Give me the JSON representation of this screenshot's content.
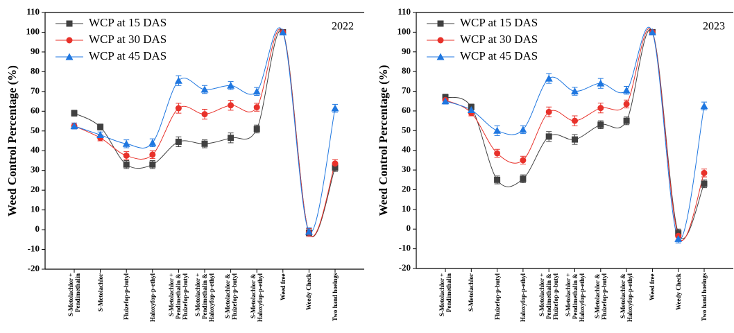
{
  "chart_data": [
    {
      "type": "line",
      "y_label": "Weed Control Percentage (%)",
      "annotation": "2022",
      "categories": [
        "S-Metolachlor + Pendimethalin",
        "S-Metolachlor",
        "Fluizefop-p-butyl",
        "Haloxyfop-p-ethyl",
        "S-Metolachlor + Pendimethalin & Fluizefop-p-butyl",
        "S-Metolachlor + Pendimethalin & Haloxyfop-p-ethyl",
        "S-Metolachlor & Fluizefop-p-butyl",
        "S-Metolachlor & Haloxyfop-p-ethyl",
        "Weed free",
        "Weedy Check",
        "Two hand hoeings"
      ],
      "series": [
        {
          "name": "WCP at 15 DAS",
          "color": "#404040",
          "marker": "square",
          "values": [
            59,
            52,
            33,
            33,
            44.5,
            43.5,
            46.5,
            51,
            100,
            -1.5,
            31.5
          ],
          "errors": [
            1.5,
            1.5,
            2,
            2,
            2.5,
            2,
            2.5,
            2,
            1,
            2,
            2
          ]
        },
        {
          "name": "WCP at 30 DAS",
          "color": "#e8312a",
          "marker": "circle",
          "values": [
            52.5,
            46.5,
            37.5,
            38,
            61.5,
            58.5,
            63,
            62,
            100,
            -1.5,
            33.5
          ],
          "errors": [
            1.5,
            1.5,
            2,
            2,
            2.5,
            2.5,
            2.5,
            2,
            1,
            2,
            2
          ]
        },
        {
          "name": "WCP at 45 DAS",
          "color": "#1f77e0",
          "marker": "triangle",
          "values": [
            52.5,
            48,
            43.5,
            44,
            75.5,
            71,
            73,
            70,
            100,
            -1,
            61.5
          ],
          "errors": [
            1.5,
            1.5,
            2,
            2,
            2.5,
            2,
            2,
            2,
            1,
            2,
            2
          ]
        }
      ],
      "ylim": [
        -20,
        110
      ],
      "yticks": [
        -20,
        -10,
        0,
        10,
        20,
        30,
        40,
        50,
        60,
        70,
        80,
        90,
        100,
        110
      ],
      "legend": "upper left"
    },
    {
      "type": "line",
      "y_label": "Weed Control Percentage (%)",
      "annotation": "2023",
      "categories": [
        "S-Metolachlor + Pendimethalin",
        "S-Metolachlor",
        "Fluizefop-p-butyl",
        "Haloxyfop-p-ethyl",
        "S-Metolachlor + Pendimethalin & Fluizefop-p-butyl",
        "S-Metolachlor + Pendimethalin & Haloxyfop-p-ethyl",
        "S-Metolachlor & Fluizefop-p-butyl",
        "S-Metolachlor & Haloxyfop-p-ethyl",
        "Weed free",
        "Weedy Check",
        "Two hand hoeings"
      ],
      "series": [
        {
          "name": "WCP at 15 DAS",
          "color": "#404040",
          "marker": "square",
          "values": [
            67,
            62,
            25,
            25.5,
            47,
            45.5,
            53,
            55,
            100,
            -2,
            23
          ],
          "errors": [
            1.5,
            1.5,
            2,
            2,
            2.5,
            2.5,
            2,
            2,
            1,
            2,
            2
          ]
        },
        {
          "name": "WCP at 30 DAS",
          "color": "#e8312a",
          "marker": "circle",
          "values": [
            65.5,
            59,
            38.5,
            35,
            59.5,
            55,
            61.5,
            63.5,
            100,
            -3.5,
            28.5
          ],
          "errors": [
            1.5,
            1.5,
            2,
            2,
            2.5,
            2.5,
            2.5,
            2,
            1,
            2,
            2
          ]
        },
        {
          "name": "WCP at 45 DAS",
          "color": "#1f77e0",
          "marker": "triangle",
          "values": [
            65,
            60.5,
            50,
            50.5,
            76.5,
            70,
            74,
            70.5,
            100,
            -5,
            62.5
          ],
          "errors": [
            1.5,
            1.5,
            2.5,
            2,
            2.5,
            2,
            2.5,
            2,
            1,
            2,
            2
          ]
        }
      ],
      "ylim": [
        -20,
        110
      ],
      "yticks": [
        -20,
        -10,
        0,
        10,
        20,
        30,
        40,
        50,
        60,
        70,
        80,
        90,
        100,
        110
      ],
      "legend": "upper left"
    }
  ]
}
